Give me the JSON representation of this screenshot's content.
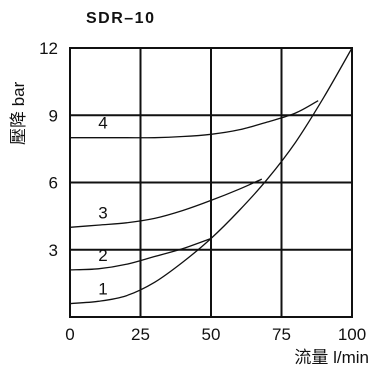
{
  "page": {
    "title": "SDR–10"
  },
  "chart_data": {
    "type": "line",
    "title": "SDR–10",
    "xlabel": "流量 l/min",
    "ylabel": "壓降 bar",
    "xlim": [
      0,
      100
    ],
    "ylim": [
      0,
      12
    ],
    "xticks": [
      0,
      25,
      50,
      75,
      100
    ],
    "yticks": [
      3,
      6,
      9,
      12
    ],
    "grid": true,
    "series": [
      {
        "name": "1",
        "x": [
          0,
          10,
          20,
          30,
          40,
          50,
          60,
          70,
          80,
          90,
          100
        ],
        "y": [
          0.6,
          0.7,
          0.95,
          1.55,
          2.45,
          3.5,
          4.75,
          6.15,
          7.8,
          9.8,
          12.0
        ]
      },
      {
        "name": "2",
        "x": [
          0,
          10,
          20,
          30,
          40,
          50
        ],
        "y": [
          2.1,
          2.15,
          2.35,
          2.7,
          3.05,
          3.5
        ]
      },
      {
        "name": "3",
        "x": [
          0,
          10,
          20,
          30,
          40,
          50,
          60,
          68
        ],
        "y": [
          4.0,
          4.1,
          4.2,
          4.4,
          4.75,
          5.2,
          5.7,
          6.15
        ]
      },
      {
        "name": "4",
        "x": [
          0,
          10,
          20,
          30,
          40,
          50,
          60,
          70,
          80,
          88
        ],
        "y": [
          8.0,
          8.0,
          8.0,
          8.0,
          8.05,
          8.15,
          8.35,
          8.7,
          9.1,
          9.65
        ]
      }
    ]
  }
}
